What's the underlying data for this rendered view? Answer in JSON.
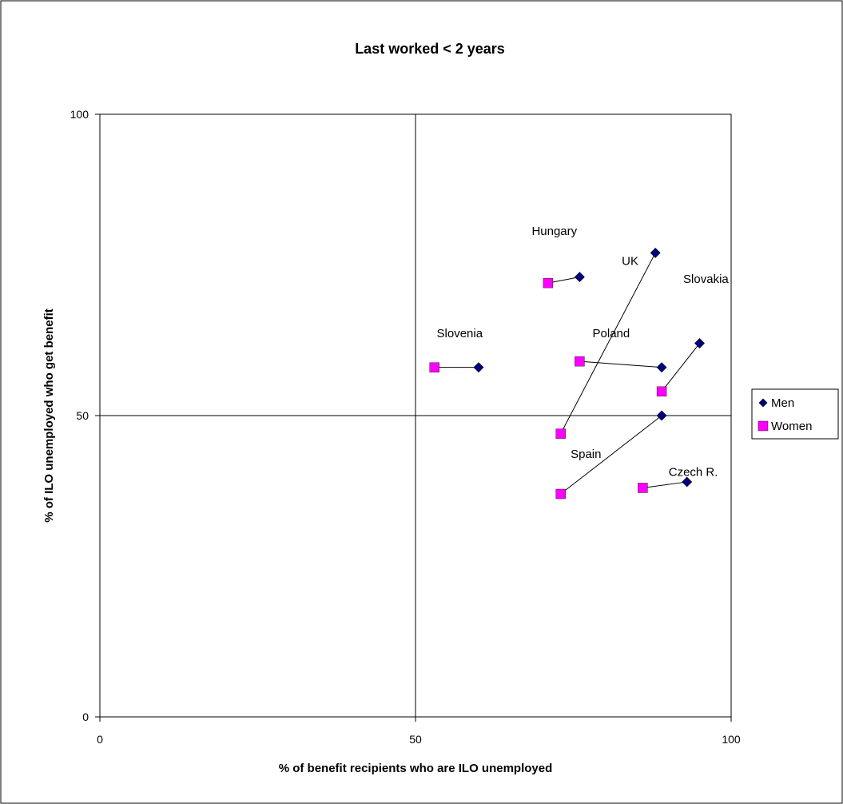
{
  "chart_data": {
    "type": "scatter",
    "title": "Last worked < 2 years",
    "xlabel": "% of benefit recipients who are ILO unemployed",
    "ylabel": "% of ILO unemployed who get benefit",
    "xlim": [
      0,
      100
    ],
    "ylim": [
      0,
      100
    ],
    "xticks": [
      "0",
      "50",
      "100"
    ],
    "yticks": [
      "0",
      "50",
      "100"
    ],
    "grid": false,
    "reference_lines": {
      "x": 50,
      "y": 50
    },
    "legend_position": "right",
    "series": [
      {
        "name": "Men",
        "marker": "diamond",
        "color": "#000080",
        "points": [
          {
            "country": "Hungary",
            "x": 76,
            "y": 73
          },
          {
            "country": "UK",
            "x": 88,
            "y": 77
          },
          {
            "country": "Slovakia",
            "x": 95,
            "y": 62
          },
          {
            "country": "Poland",
            "x": 89,
            "y": 58
          },
          {
            "country": "Slovenia",
            "x": 60,
            "y": 58
          },
          {
            "country": "Spain",
            "x": 89,
            "y": 50
          },
          {
            "country": "Czech R.",
            "x": 93,
            "y": 39
          }
        ]
      },
      {
        "name": "Women",
        "marker": "square",
        "color": "#FF00FF",
        "points": [
          {
            "country": "Hungary",
            "x": 71,
            "y": 72
          },
          {
            "country": "UK",
            "x": 73,
            "y": 47
          },
          {
            "country": "Slovakia",
            "x": 89,
            "y": 54
          },
          {
            "country": "Poland",
            "x": 76,
            "y": 59
          },
          {
            "country": "Slovenia",
            "x": 53,
            "y": 58
          },
          {
            "country": "Spain",
            "x": 73,
            "y": 37
          },
          {
            "country": "Czech R.",
            "x": 86,
            "y": 38
          }
        ]
      }
    ],
    "annotations": [
      {
        "text": "Hungary",
        "x": 72,
        "y": 80
      },
      {
        "text": "UK",
        "x": 84,
        "y": 75
      },
      {
        "text": "Slovakia",
        "x": 96,
        "y": 72
      },
      {
        "text": "Poland",
        "x": 81,
        "y": 63
      },
      {
        "text": "Slovenia",
        "x": 57,
        "y": 63
      },
      {
        "text": "Spain",
        "x": 77,
        "y": 43
      },
      {
        "text": "Czech R.",
        "x": 94,
        "y": 40
      }
    ]
  }
}
